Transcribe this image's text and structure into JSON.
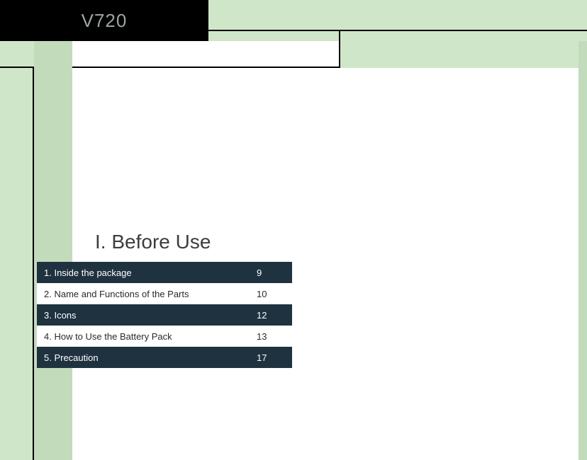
{
  "header": {
    "model": "V720",
    "model_color": "#9aa69e",
    "bg": "#000000"
  },
  "palette": {
    "page_bg": "#d0e6c8",
    "col_bg": "#c2dcbb",
    "content_bg": "#ffffff",
    "rule": "#000000",
    "toc_dark_bg": "#1f323f",
    "toc_dark_text": "#ffffff",
    "toc_light_text": "#2a2a2a",
    "heading_color": "#3d3d3d"
  },
  "section": {
    "heading": "I. Before Use",
    "heading_fontsize": 28
  },
  "toc": {
    "label_fontsize": 13,
    "rows": [
      {
        "label": "1. Inside the package",
        "page": "9",
        "variant": "dark"
      },
      {
        "label": "2. Name and Functions of the Parts",
        "page": "10",
        "variant": "light"
      },
      {
        "label": "3. Icons",
        "page": "12",
        "variant": "dark"
      },
      {
        "label": "4. How to Use the Battery Pack",
        "page": "13",
        "variant": "light"
      },
      {
        "label": "5. Precaution",
        "page": "17",
        "variant": "dark"
      }
    ]
  }
}
